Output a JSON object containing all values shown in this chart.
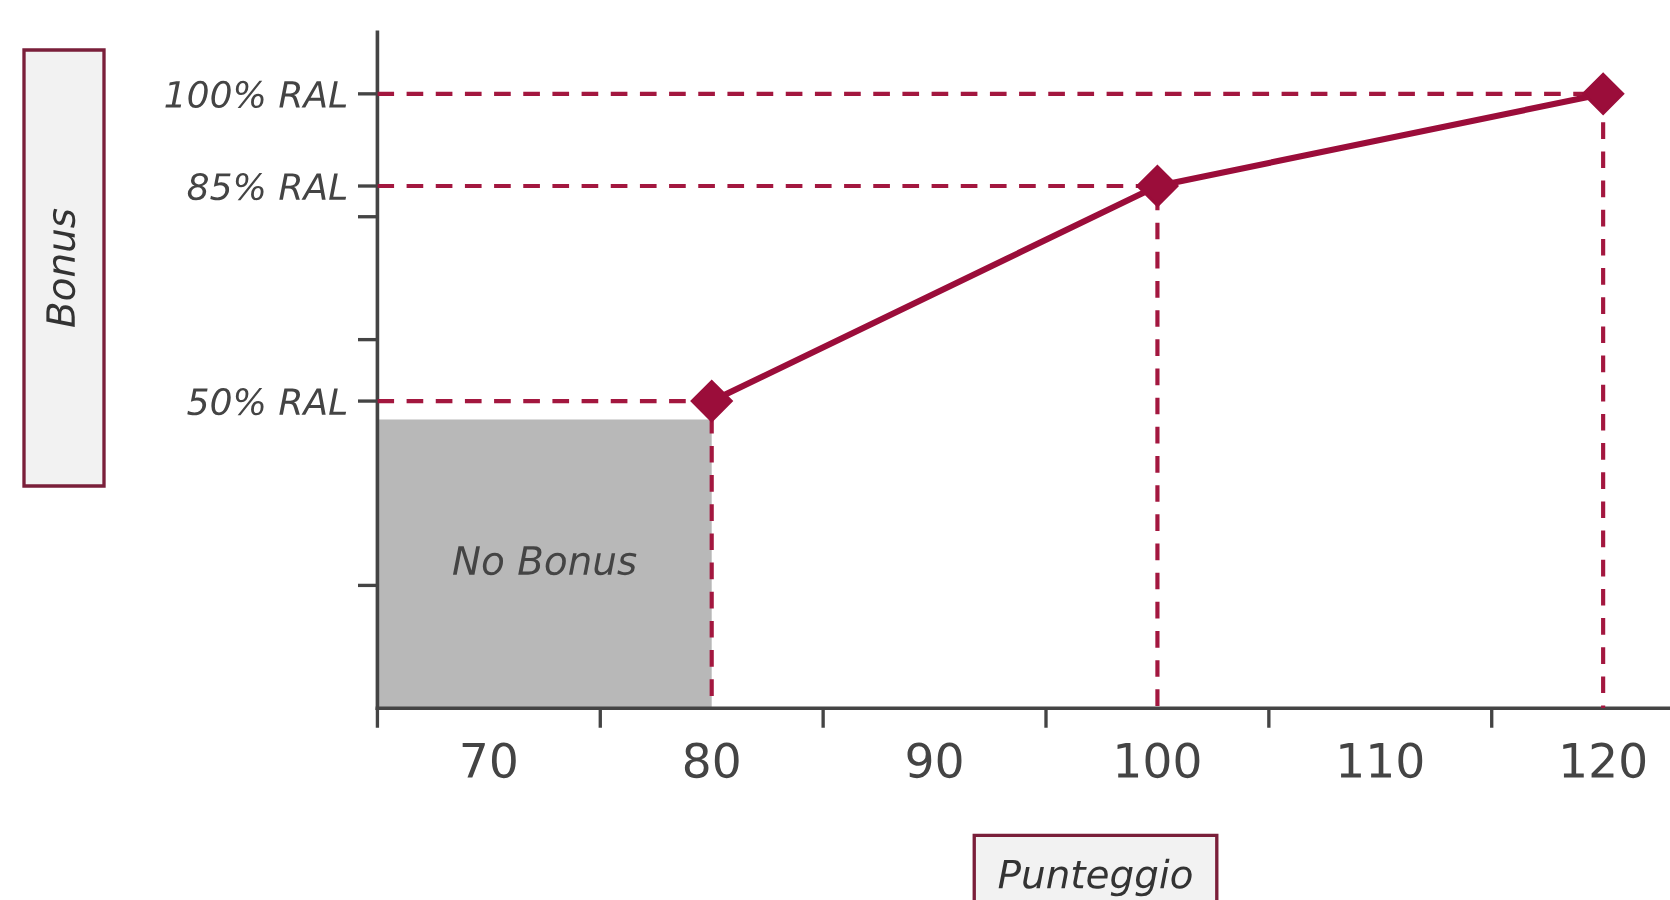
{
  "chart_data": {
    "type": "line",
    "xlabel": "Punteggio",
    "ylabel": "Bonus",
    "xlim": [
      65,
      123
    ],
    "ylim": [
      0,
      110
    ],
    "xticks": [
      {
        "value": 65,
        "label": null
      },
      {
        "value": 70,
        "label": "70"
      },
      {
        "value": 75,
        "label": null
      },
      {
        "value": 80,
        "label": "80"
      },
      {
        "value": 85,
        "label": null
      },
      {
        "value": 90,
        "label": "90"
      },
      {
        "value": 95,
        "label": null
      },
      {
        "value": 100,
        "label": "100"
      },
      {
        "value": 105,
        "label": null
      },
      {
        "value": 110,
        "label": "110"
      },
      {
        "value": 115,
        "label": null
      },
      {
        "value": 120,
        "label": "120"
      }
    ],
    "yticks": [
      {
        "value": 20,
        "label": null
      },
      {
        "value": 50,
        "label": "50% RAL"
      },
      {
        "value": 60,
        "label": null
      },
      {
        "value": 80,
        "label": null
      },
      {
        "value": 85,
        "label": "85% RAL"
      },
      {
        "value": 100,
        "label": "100% RAL"
      }
    ],
    "series": [
      {
        "color": "#9b0d3a",
        "line_style": "solid",
        "marker": "diamond",
        "x": [
          80,
          100,
          120
        ],
        "values": [
          50,
          85,
          100
        ]
      },
      {
        "type": "area",
        "color": "#b8b8b8",
        "x": [
          65,
          80
        ],
        "values": [
          47,
          47
        ]
      },
      {
        "type": "line",
        "color": "#a3173f",
        "line_style": "dashed",
        "marker": "none",
        "x": [
          65,
          80,
          80
        ],
        "values": [
          50,
          50,
          0
        ]
      },
      {
        "type": "line",
        "color": "#a3173f",
        "line_style": "dashed",
        "marker": "none",
        "x": [
          65,
          100,
          100
        ],
        "values": [
          85,
          85,
          0
        ]
      },
      {
        "type": "line",
        "color": "#a3173f",
        "line_style": "dashed",
        "marker": "none",
        "x": [
          65,
          120,
          120
        ],
        "values": [
          100,
          100,
          0
        ]
      }
    ],
    "annotations": [
      "No Bonus"
    ],
    "grid": false,
    "legend": false
  }
}
